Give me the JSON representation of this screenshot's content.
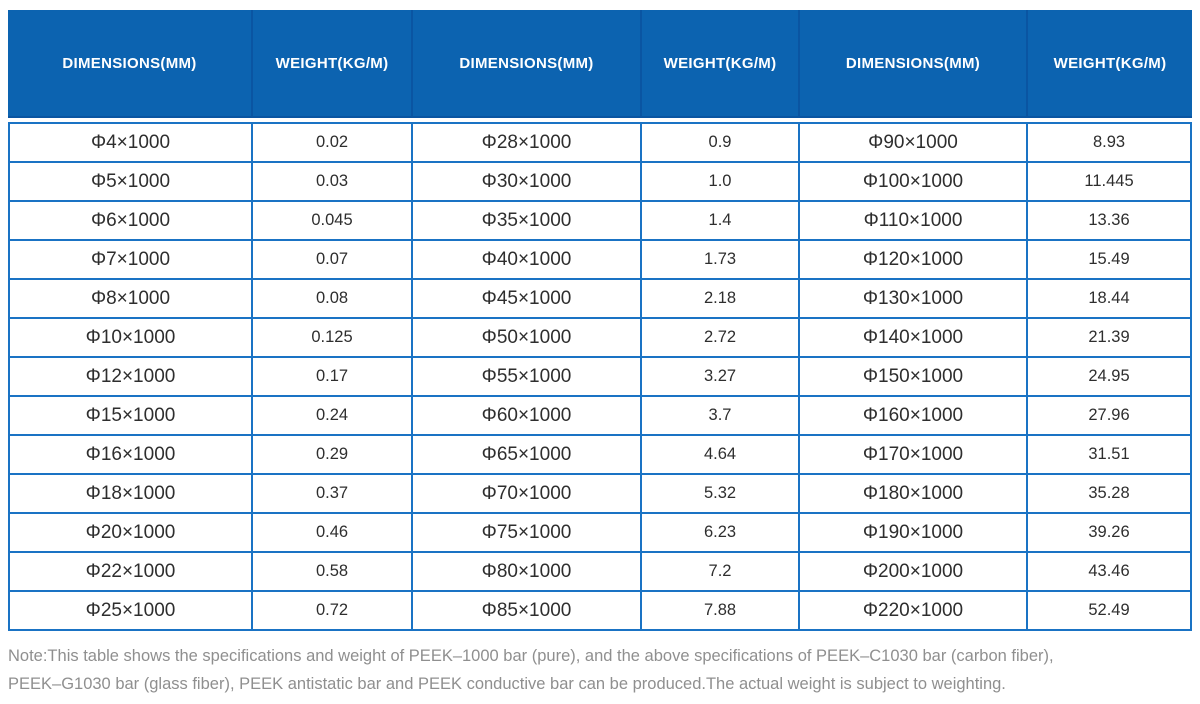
{
  "table": {
    "headers": [
      "DIMENSIONS(MM)",
      "WEIGHT(KG/M)",
      "DIMENSIONS(MM)",
      "WEIGHT(KG/M)",
      "DIMENSIONS(MM)",
      "WEIGHT(KG/M)"
    ],
    "rows": [
      [
        "Φ4×1000",
        "0.02",
        "Φ28×1000",
        "0.9",
        "Φ90×1000",
        "8.93"
      ],
      [
        "Φ5×1000",
        "0.03",
        "Φ30×1000",
        "1.0",
        "Φ100×1000",
        "11.445"
      ],
      [
        "Φ6×1000",
        "0.045",
        "Φ35×1000",
        "1.4",
        "Φ110×1000",
        "13.36"
      ],
      [
        "Φ7×1000",
        "0.07",
        "Φ40×1000",
        "1.73",
        "Φ120×1000",
        "15.49"
      ],
      [
        "Φ8×1000",
        "0.08",
        "Φ45×1000",
        "2.18",
        "Φ130×1000",
        "18.44"
      ],
      [
        "Φ10×1000",
        "0.125",
        "Φ50×1000",
        "2.72",
        "Φ140×1000",
        "21.39"
      ],
      [
        "Φ12×1000",
        "0.17",
        "Φ55×1000",
        "3.27",
        "Φ150×1000",
        "24.95"
      ],
      [
        "Φ15×1000",
        "0.24",
        "Φ60×1000",
        "3.7",
        "Φ160×1000",
        "27.96"
      ],
      [
        "Φ16×1000",
        "0.29",
        "Φ65×1000",
        "4.64",
        "Φ170×1000",
        "31.51"
      ],
      [
        "Φ18×1000",
        "0.37",
        "Φ70×1000",
        "5.32",
        "Φ180×1000",
        "35.28"
      ],
      [
        "Φ20×1000",
        "0.46",
        "Φ75×1000",
        "6.23",
        "Φ190×1000",
        "39.26"
      ],
      [
        "Φ22×1000",
        "0.58",
        "Φ80×1000",
        "7.2",
        "Φ200×1000",
        "43.46"
      ],
      [
        "Φ25×1000",
        "0.72",
        "Φ85×1000",
        "7.88",
        "Φ220×1000",
        "52.49"
      ]
    ]
  },
  "note": {
    "line1": "Note:This table shows the specifications and weight of PEEK–1000 bar (pure), and the above specifications of PEEK–C1030 bar (carbon fiber),",
    "line2": "PEEK–G1030 bar (glass fiber), PEEK antistatic bar and PEEK conductive bar can be produced.The actual weight is subject to weighting."
  },
  "colors": {
    "header_bg": "#0c63b0",
    "header_divider": "#0a55a2",
    "grid_border": "#1a73c4",
    "cell_text": "#2e2e2e",
    "note_text": "#8f8f8f"
  }
}
